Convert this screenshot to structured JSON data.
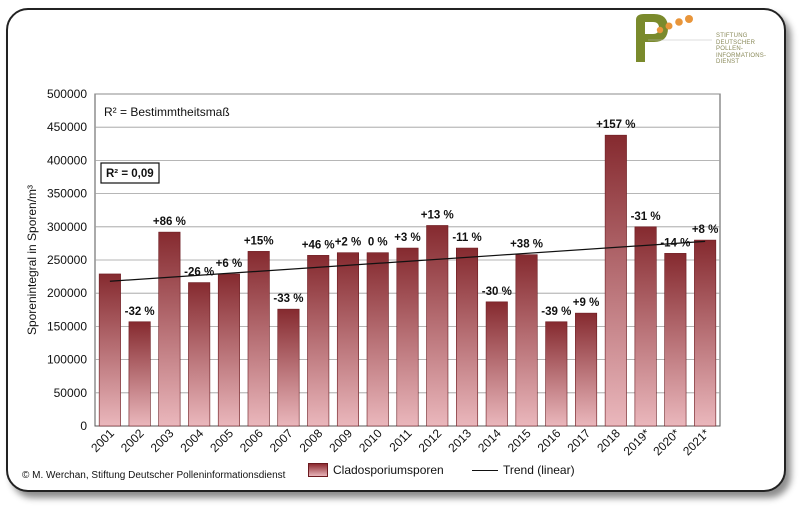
{
  "logo": {
    "letter": "P",
    "text_lines": [
      "STIFTUNG",
      "DEUTSCHER",
      "POLLEN-",
      "INFORMATIONS-",
      "DIENST"
    ],
    "colors": {
      "green": "#7a8a2c",
      "orange": "#e8953a"
    }
  },
  "copyright": "© M. Werchan, Stiftung Deutscher Polleninformationsdienst",
  "legend": {
    "bar_label": "Cladosporiumsporen",
    "trend_label": "Trend (linear)"
  },
  "annotations": {
    "r2_definition": "R² = Bestimmtheitsmaß",
    "r2_value": "R² = 0,09"
  },
  "colors": {
    "bar_top": "#852a2f",
    "bar_bottom": "#eab7bc",
    "bar_border": "#6b1a1f",
    "grid": "#9e9e9e",
    "plot_bg": "#ffffff"
  },
  "chart_data": {
    "type": "bar",
    "ylabel": "Sporenintegral in Sporen/m³",
    "xlabel": "",
    "ylim": [
      0,
      500000
    ],
    "yticks": [
      0,
      50000,
      100000,
      150000,
      200000,
      250000,
      300000,
      350000,
      400000,
      450000,
      500000
    ],
    "grid": true,
    "legend_position": "bottom",
    "categories": [
      "2001",
      "2002",
      "2003",
      "2004",
      "2005",
      "2006",
      "2007",
      "2008",
      "2009",
      "2010",
      "2011",
      "2012",
      "2013",
      "2014",
      "2015",
      "2016",
      "2017",
      "2018",
      "2019*",
      "2020*",
      "2021*"
    ],
    "values": [
      229000,
      157000,
      292000,
      216000,
      229000,
      263000,
      176000,
      257000,
      261000,
      261000,
      268000,
      302000,
      268000,
      187000,
      258000,
      157000,
      170000,
      438000,
      300000,
      260000,
      280000
    ],
    "labels": [
      "",
      "-32 %",
      "+86 %",
      "-26 %",
      "+6 %",
      "+15%",
      "-33 %",
      "+46 %",
      "+2 %",
      "0 %",
      "+3 %",
      "+13 %",
      "-11 %",
      "-30 %",
      "+38 %",
      "-39 %",
      "+9 %",
      "+157 %",
      "-31 %",
      "-14 %",
      "+8 %"
    ],
    "trend": {
      "type": "linear",
      "start": 218000,
      "end": 278000
    },
    "series": [
      {
        "name": "Cladosporiumsporen"
      }
    ]
  }
}
